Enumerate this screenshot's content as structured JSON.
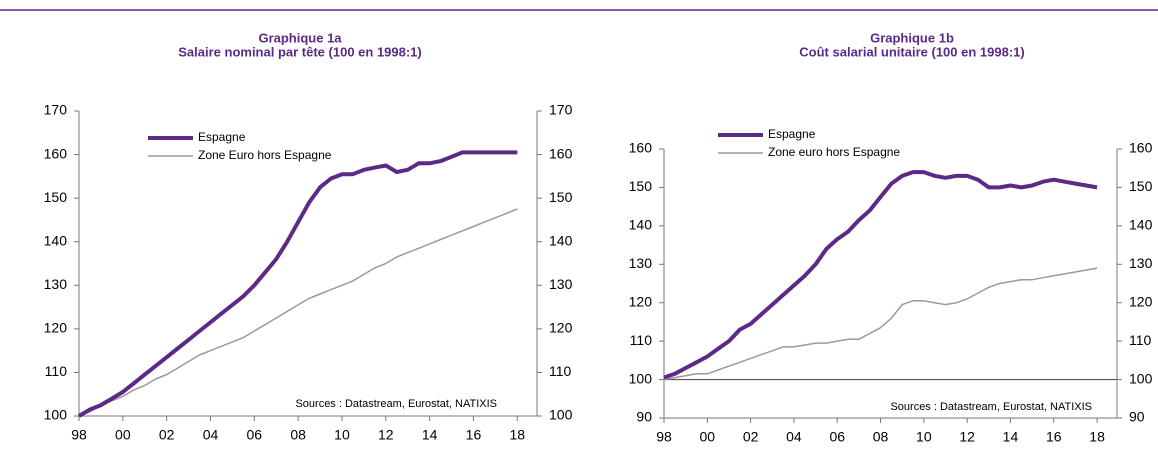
{
  "chart_data": [
    {
      "type": "line",
      "title": "Graphique 1a",
      "subtitle": "Salaire nominal par tête (100 en 1998:1)",
      "x": [
        1998,
        1998.5,
        1999,
        1999.5,
        2000,
        2000.5,
        2001,
        2001.5,
        2002,
        2002.5,
        2003,
        2003.5,
        2004,
        2004.5,
        2005,
        2005.5,
        2006,
        2006.5,
        2007,
        2007.5,
        2008,
        2008.5,
        2009,
        2009.5,
        2010,
        2010.5,
        2011,
        2011.5,
        2012,
        2012.5,
        2013,
        2013.5,
        2014,
        2014.5,
        2015,
        2015.5,
        2016,
        2016.5,
        2017,
        2017.5,
        2018
      ],
      "series": [
        {
          "name": "Espagne",
          "color": "#5b2a86",
          "width": 4,
          "values": [
            100,
            101.5,
            102.5,
            104,
            105.5,
            107.5,
            109.5,
            111.5,
            113.5,
            115.5,
            117.5,
            119.5,
            121.5,
            123.5,
            125.5,
            127.5,
            130,
            133,
            136,
            140,
            144.5,
            149,
            152.5,
            154.5,
            155.5,
            155.5,
            156.5,
            157,
            157.5,
            156,
            156.5,
            158,
            158,
            158.5,
            159.5,
            160.5,
            160.5,
            160.5,
            160.5,
            160.5,
            160.5
          ]
        },
        {
          "name": "Zone Euro hors Espagne",
          "color": "#9a9a9a",
          "width": 1.5,
          "values": [
            100,
            101,
            102.5,
            103.5,
            104.5,
            106,
            107,
            108.5,
            109.5,
            111,
            112.5,
            114,
            115,
            116,
            117,
            118,
            119.5,
            121,
            122.5,
            124,
            125.5,
            127,
            128,
            129,
            130,
            131,
            132.5,
            134,
            135,
            136.5,
            137.5,
            138.5,
            139.5,
            140.5,
            141.5,
            142.5,
            143.5,
            144.5,
            145.5,
            146.5,
            147.5
          ]
        }
      ],
      "xlim": [
        1998,
        2018.9
      ],
      "xticks": [
        {
          "value": 1998,
          "label": "98"
        },
        {
          "value": 2000,
          "label": "00"
        },
        {
          "value": 2002,
          "label": "02"
        },
        {
          "value": 2004,
          "label": "04"
        },
        {
          "value": 2006,
          "label": "06"
        },
        {
          "value": 2008,
          "label": "08"
        },
        {
          "value": 2010,
          "label": "10"
        },
        {
          "value": 2012,
          "label": "12"
        },
        {
          "value": 2014,
          "label": "14"
        },
        {
          "value": 2016,
          "label": "16"
        },
        {
          "value": 2018,
          "label": "18"
        }
      ],
      "ylim": [
        100,
        170
      ],
      "yticks": [
        100,
        110,
        120,
        130,
        140,
        150,
        160,
        170
      ],
      "y2lim": [
        100,
        170
      ],
      "y2ticks": [
        100,
        110,
        120,
        130,
        140,
        150,
        160,
        170
      ],
      "legend": "top left",
      "source": "Sources : Datastream,  Eurostat,  NATIXIS"
    },
    {
      "type": "line",
      "title": "Graphique 1b",
      "subtitle": "Coût salarial unitaire (100 en 1998:1)",
      "x": [
        1998,
        1998.5,
        1999,
        1999.5,
        2000,
        2000.5,
        2001,
        2001.5,
        2002,
        2002.5,
        2003,
        2003.5,
        2004,
        2004.5,
        2005,
        2005.5,
        2006,
        2006.5,
        2007,
        2007.5,
        2008,
        2008.5,
        2009,
        2009.5,
        2010,
        2010.5,
        2011,
        2011.5,
        2012,
        2012.5,
        2013,
        2013.5,
        2014,
        2014.5,
        2015,
        2015.5,
        2016,
        2016.5,
        2017,
        2017.5,
        2018
      ],
      "series": [
        {
          "name": "Espagne",
          "color": "#5b2a86",
          "width": 4,
          "values": [
            100.5,
            101.5,
            103,
            104.5,
            106,
            108,
            110,
            113,
            114.5,
            117,
            119.5,
            122,
            124.5,
            127,
            130,
            134,
            136.5,
            138.5,
            141.5,
            144,
            147.5,
            151,
            153,
            154,
            154,
            153,
            152.5,
            153,
            153,
            152,
            150,
            150,
            150.5,
            150,
            150.5,
            151.5,
            152,
            151.5,
            151,
            150.5,
            150
          ]
        },
        {
          "name": "Zone euro hors Espagne",
          "color": "#9a9a9a",
          "width": 1.5,
          "values": [
            100,
            100.5,
            101,
            101.5,
            101.5,
            102.5,
            103.5,
            104.5,
            105.5,
            106.5,
            107.5,
            108.5,
            108.5,
            109,
            109.5,
            109.5,
            110,
            110.5,
            110.5,
            112,
            113.5,
            116,
            119.5,
            120.5,
            120.5,
            120,
            119.5,
            120,
            121,
            122.5,
            124,
            125,
            125.5,
            126,
            126,
            126.5,
            127,
            127.5,
            128,
            128.5,
            129
          ]
        }
      ],
      "xlim": [
        1998,
        2018.92
      ],
      "xticks": [
        {
          "value": 1998,
          "label": "98"
        },
        {
          "value": 2000,
          "label": "00"
        },
        {
          "value": 2002,
          "label": "02"
        },
        {
          "value": 2004,
          "label": "04"
        },
        {
          "value": 2006,
          "label": "06"
        },
        {
          "value": 2008,
          "label": "08"
        },
        {
          "value": 2010,
          "label": "10"
        },
        {
          "value": 2012,
          "label": "12"
        },
        {
          "value": 2014,
          "label": "14"
        },
        {
          "value": 2016,
          "label": "16"
        },
        {
          "value": 2018,
          "label": "18"
        }
      ],
      "ylim": [
        90,
        160
      ],
      "yticks": [
        90,
        100,
        110,
        120,
        130,
        140,
        150,
        160
      ],
      "y2lim": [
        90,
        160
      ],
      "y2ticks": [
        90,
        100,
        110,
        120,
        130,
        140,
        150,
        160
      ],
      "reference_line": 100,
      "legend": "top left",
      "source": "Sources : Datastream,  Eurostat,  NATIXIS"
    }
  ]
}
